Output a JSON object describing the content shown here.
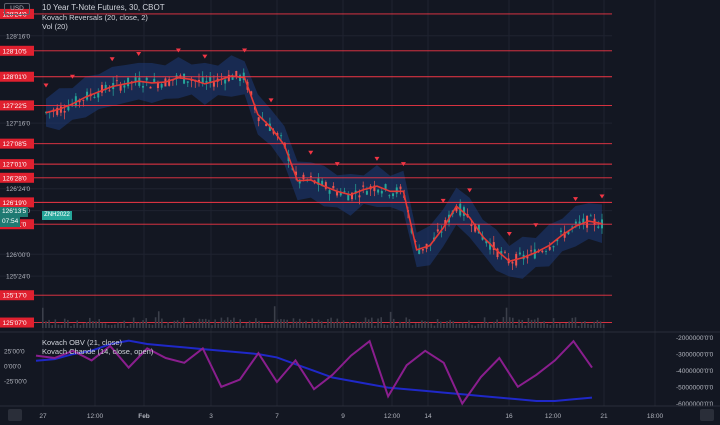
{
  "header": {
    "currency": "USD",
    "title": "10 Year T-Note Futures, 30, CBOT",
    "indicator_1": "Kovach Reversals (20, close, 2)",
    "indicator_2": "Vol (20)",
    "lower_indicator_1": "Kovach OBV (21, close)",
    "lower_indicator_2": "Kovach Chande (14, close, open)"
  },
  "last_price": {
    "value": "126'13'5",
    "countdown": "07:54",
    "symbol": "ZNH2022"
  },
  "colors": {
    "background": "#131722",
    "level_line": "#f23645",
    "mean_line": "#e53935",
    "band": "#1e3a78",
    "obv": "#1f28c8",
    "chande": "#8a1e8e",
    "grid": "#1f2330"
  },
  "chart_data": [
    {
      "type": "candlestick",
      "title": "10 Year T-Note Futures, 30, CBOT",
      "y_ticks": [
        "128'16'0",
        "127'16'0",
        "126'24'0",
        "126'16'0",
        "126'00'0",
        "125'24'0"
      ],
      "levels": [
        "128'24'0",
        "128'10'5",
        "128'01'0",
        "127'22'5",
        "127'08'5",
        "127'01'0",
        "126'28'0",
        "126'19'0",
        "126'11'0",
        "125'17'0",
        "125'07'0"
      ],
      "x_ticks": [
        "27",
        "12:00",
        "Feb",
        "3",
        "7",
        "9",
        "12:00",
        "14",
        "16",
        "12:00",
        "21",
        "18:00"
      ],
      "ylim": [
        "125'05'0",
        "128'28'0"
      ],
      "close_path": [
        [
          "27",
          127.62
        ],
        [
          "",
          127.66
        ],
        [
          "",
          127.72
        ],
        [
          "",
          127.8
        ],
        [
          "",
          127.86
        ],
        [
          "12:00",
          127.92
        ],
        [
          "",
          127.95
        ],
        [
          "",
          127.98
        ],
        [
          "",
          127.96
        ],
        [
          "Feb",
          127.97
        ],
        [
          "",
          128.02
        ],
        [
          "",
          128.0
        ],
        [
          "",
          127.95
        ],
        [
          "",
          127.99
        ],
        [
          "3",
          128.04
        ],
        [
          "",
          128.02
        ],
        [
          "",
          127.6
        ],
        [
          "",
          127.45
        ],
        [
          "",
          127.25
        ],
        [
          "7",
          126.84
        ],
        [
          "",
          126.85
        ],
        [
          "",
          126.78
        ],
        [
          "",
          126.72
        ],
        [
          "",
          126.68
        ],
        [
          "9",
          126.74
        ],
        [
          "",
          126.78
        ],
        [
          "",
          126.72
        ],
        [
          "12:00",
          126.72
        ],
        [
          "",
          126.05
        ],
        [
          "",
          126.1
        ],
        [
          "",
          126.3
        ],
        [
          "14",
          126.55
        ],
        [
          "",
          126.42
        ],
        [
          "",
          126.2
        ],
        [
          "",
          126.05
        ],
        [
          "16",
          125.92
        ],
        [
          "",
          125.96
        ],
        [
          "",
          126.02
        ],
        [
          "",
          126.1
        ],
        [
          "12:00",
          126.22
        ],
        [
          "",
          126.32
        ],
        [
          "",
          126.38
        ],
        [
          "21",
          126.35
        ]
      ],
      "reversal_markers": [
        "27",
        "",
        "12:00",
        "",
        "Feb",
        "",
        "3",
        "",
        "7",
        "",
        "",
        "9",
        "",
        "12:00",
        "14",
        "14",
        "",
        "12:00"
      ]
    },
    {
      "type": "line",
      "title": "Kovach OBV (21, close) / Kovach Chande (14, close, open)",
      "left_ticks": [
        "25'00'0",
        "0'00'0",
        "-25'00'0"
      ],
      "right_ticks": [
        "-2000000'0'0",
        "-3000000'0'0",
        "-4000000'0'0",
        "-5000000'0'0",
        "-6000000'0'0"
      ],
      "series": [
        {
          "name": "Kovach OBV (21, close)",
          "values": [
            -3.6,
            -3.5,
            -3.2,
            -3.0,
            -2.6,
            -2.4,
            -2.6,
            -2.7,
            -2.8,
            -2.9,
            -3.0,
            -3.1,
            -3.2,
            -3.4,
            -3.8,
            -4.2,
            -4.6,
            -4.8,
            -5.0,
            -5.2,
            -5.3,
            -5.4,
            -5.5,
            -5.6,
            -5.7,
            -5.8,
            -5.9,
            -6.0,
            -6.0,
            -5.9,
            -5.8
          ]
        },
        {
          "name": "Kovach Chande (14, close, open)",
          "values": [
            12,
            10,
            16,
            8,
            20,
            2,
            18,
            10,
            6,
            18,
            -14,
            -8,
            14,
            -10,
            8,
            -16,
            -4,
            12,
            24,
            -22,
            4,
            16,
            6,
            -28,
            -6,
            10,
            -14,
            -4,
            8,
            24,
            2
          ]
        }
      ]
    }
  ]
}
